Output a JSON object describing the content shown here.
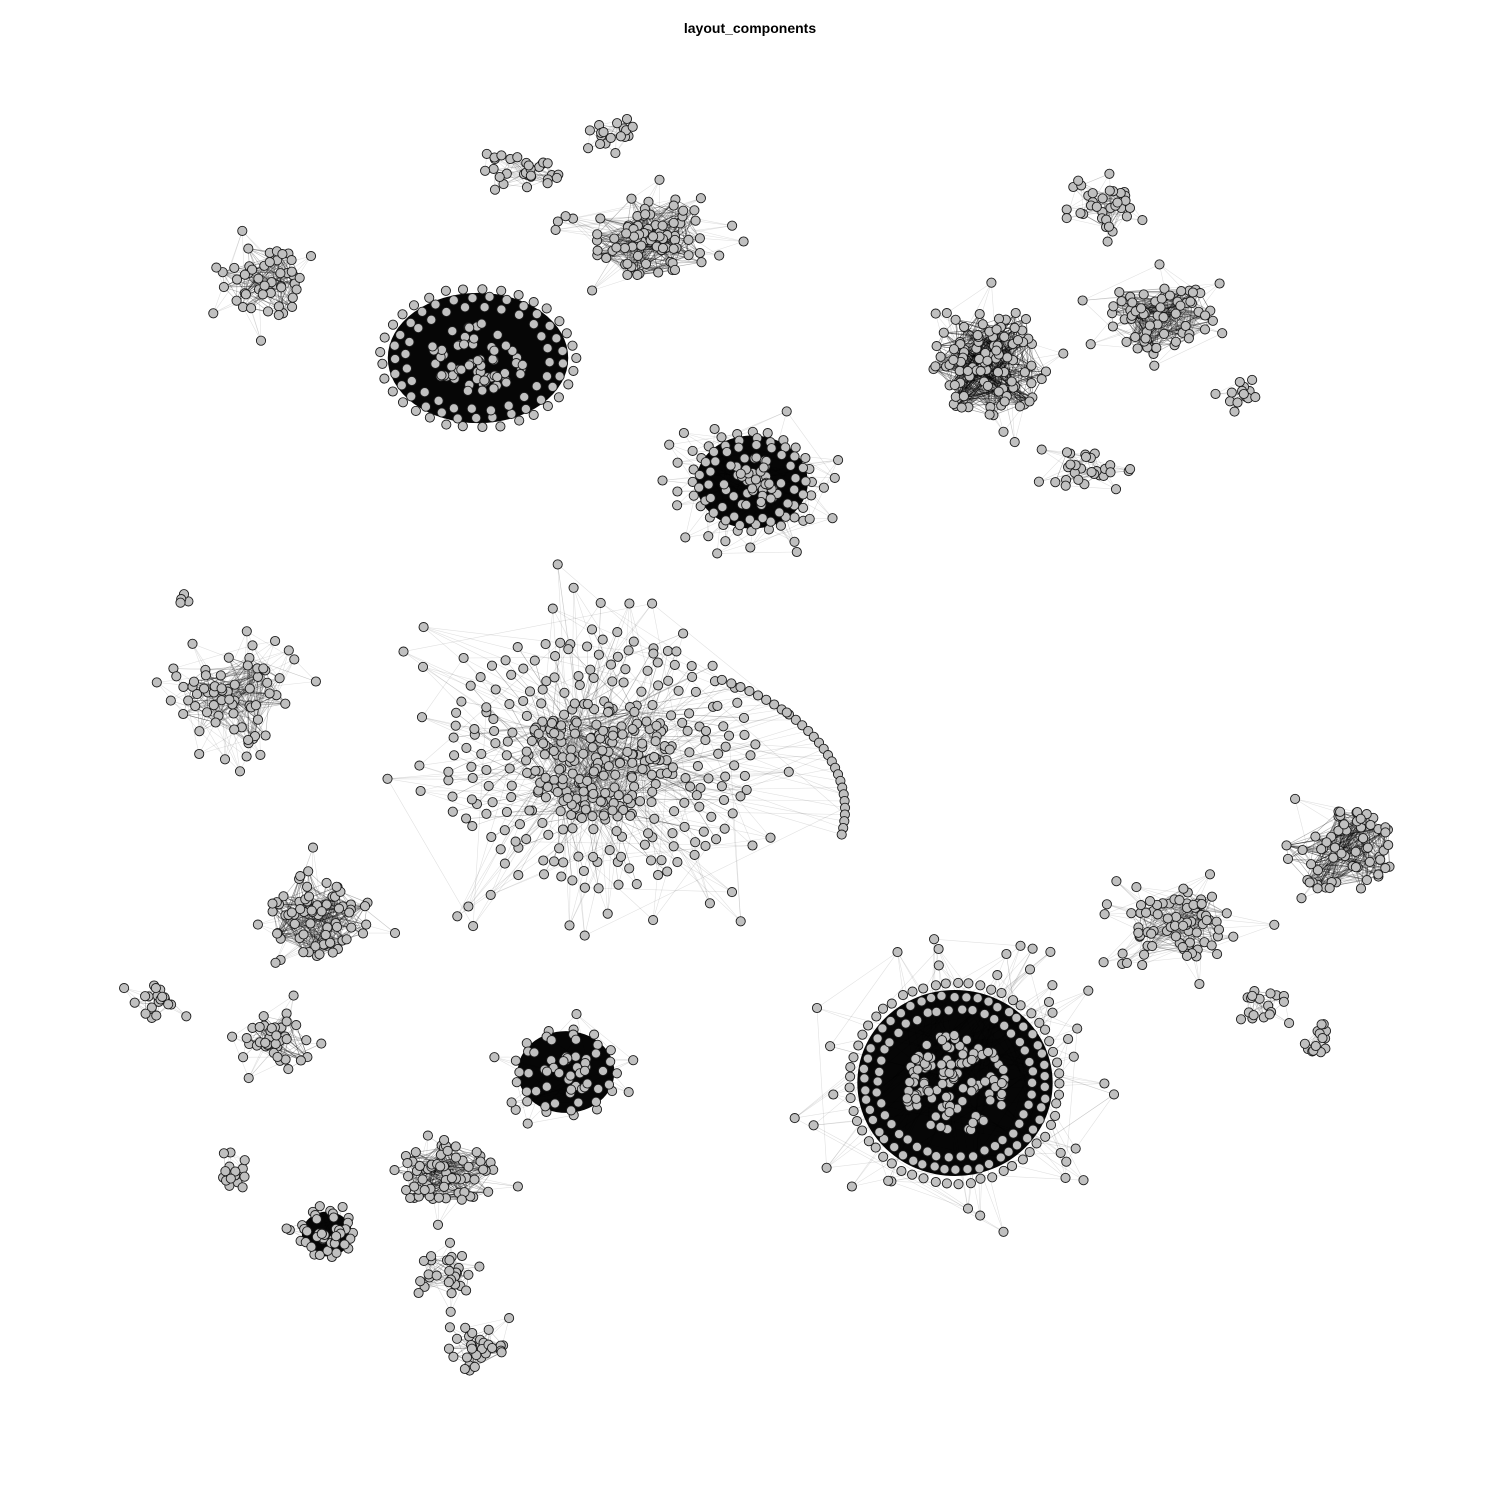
{
  "plot": {
    "title": "layout_components"
  },
  "style": {
    "node_fill": "#c0c0c0",
    "node_stroke": "#1a1a1a",
    "edge_color": "#000000",
    "background": "#ffffff"
  },
  "graph": {
    "layout": "layout_components",
    "component_count": 30
  }
}
